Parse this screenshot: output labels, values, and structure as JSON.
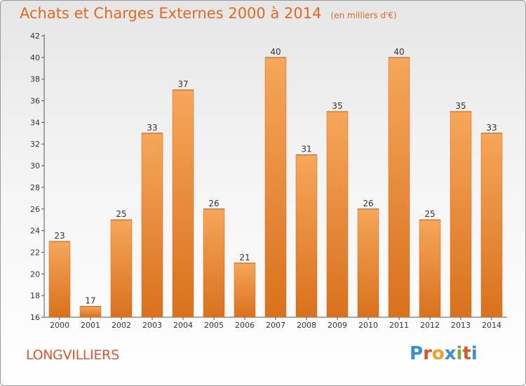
{
  "header": {
    "title": "Achats et Charges Externes 2000 à 2014",
    "subtitle": "(en milliers d'€)"
  },
  "footer": {
    "commune": "LONGVILLIERS",
    "logo_letters": [
      "P",
      "r",
      "o",
      "x",
      "i",
      "t",
      "i"
    ]
  },
  "colors": {
    "bar_top": "#f6a65a",
    "bar_bottom": "#d9711c",
    "title": "#e06a1f",
    "logo": [
      "#3a8fd4",
      "#e0552b",
      "#f0a020",
      "#3a8fd4",
      "#6ab23c",
      "#e0552b",
      "#3a8fd4"
    ]
  },
  "chart_data": {
    "type": "bar",
    "categories": [
      "2000",
      "2001",
      "2002",
      "2003",
      "2004",
      "2005",
      "2006",
      "2007",
      "2008",
      "2009",
      "2010",
      "2011",
      "2012",
      "2013",
      "2014"
    ],
    "values": [
      23,
      17,
      25,
      33,
      37,
      26,
      21,
      40,
      31,
      35,
      26,
      40,
      25,
      35,
      33
    ],
    "ylim": [
      16,
      42
    ],
    "yticks": [
      16,
      18,
      20,
      22,
      24,
      26,
      28,
      30,
      32,
      34,
      36,
      38,
      40,
      42
    ],
    "grid": false,
    "data_labels": true
  }
}
